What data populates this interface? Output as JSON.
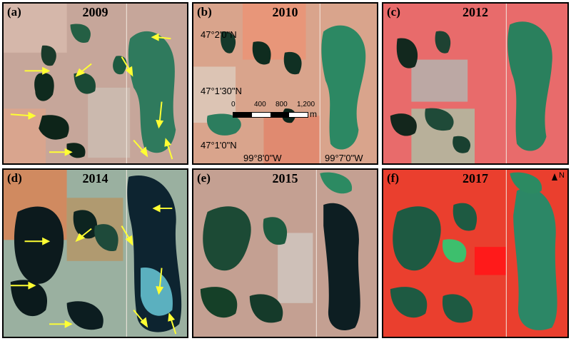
{
  "panels": [
    {
      "label": "(a)",
      "year": "2009"
    },
    {
      "label": "(b)",
      "year": "2010"
    },
    {
      "label": "(c)",
      "year": "2012"
    },
    {
      "label": "(d)",
      "year": "2014"
    },
    {
      "label": "(e)",
      "year": "2015"
    },
    {
      "label": "(f)",
      "year": "2017"
    }
  ],
  "coords": {
    "lat1": "47°2'0\"N",
    "lat2": "47°1'30\"N",
    "lat3": "47°1'0\"N",
    "lon1": "99°8'0\"W",
    "lon2": "99°7'0\"W"
  },
  "scalebar": {
    "ticks": [
      "0",
      "400",
      "800",
      "1,200"
    ],
    "unit": "m"
  },
  "north_label": "N",
  "colors": {
    "arrow": "#ffff33",
    "water_dark": "#103a28",
    "water_green": "#2d8a66",
    "land_a": "#c99a8c",
    "land_b": "#e0a080",
    "land_c": "#e86464",
    "land_d": "#5aa6a0",
    "land_e": "#c08a78",
    "land_f": "#ee3a2a"
  }
}
